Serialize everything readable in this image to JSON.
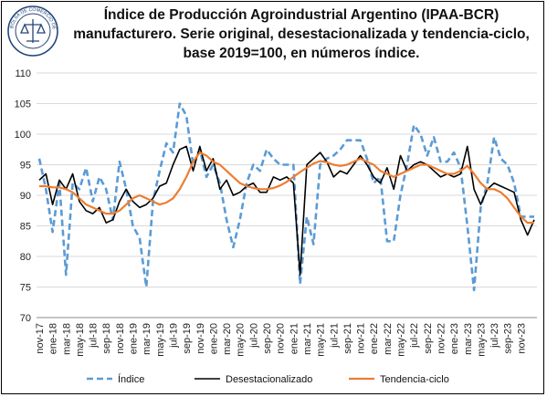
{
  "title_lines": [
    "Índice de Producción Agroindustrial Argentino (IPAA-BCR)",
    "manufacturero. Serie original, desestacionalizada y tendencia-ciclo,",
    "base 2019=100, en números índice."
  ],
  "logo_text": "BOLSA DE COMERCIO DE ROSARIO",
  "colors": {
    "indice": "#5b9bd5",
    "desest": "#000000",
    "tendencia": "#ed7d31",
    "grid": "#d9d9d9"
  },
  "chart_data": {
    "type": "line",
    "title": "Índice de Producción Agroindustrial Argentino (IPAA-BCR) manufacturero. Serie original, desestacionalizada y tendencia-ciclo, base 2019=100, en números índice.",
    "ylim": [
      70,
      110
    ],
    "yticks": [
      70,
      75,
      80,
      85,
      90,
      95,
      100,
      105,
      110
    ],
    "x_tick_labels": [
      "nov-17",
      "ene-18",
      "mar-18",
      "may-18",
      "jul-18",
      "sep-18",
      "nov-18",
      "ene-19",
      "mar-19",
      "may-19",
      "jul-19",
      "sep-19",
      "nov-19",
      "ene-20",
      "mar-20",
      "may-20",
      "jul-20",
      "sep-20",
      "nov-20",
      "ene-21",
      "mar-21",
      "may-21",
      "jul-21",
      "sep-21",
      "nov-21",
      "ene-22",
      "mar-22",
      "may-22",
      "jul-22",
      "sep-22",
      "nov-22",
      "ene-23",
      "mar-23",
      "may-23",
      "jul-23",
      "sep-23",
      "nov-23"
    ],
    "legend_position": "bottom",
    "grid": true,
    "series": [
      {
        "name": "Índice",
        "style": "dashed",
        "values": [
          96,
          91,
          84,
          92,
          77,
          92,
          91,
          94.5,
          89,
          93,
          91,
          86,
          95.5,
          91,
          85,
          83,
          75,
          89,
          94,
          98.5,
          97,
          105,
          103,
          95,
          97.5,
          93,
          95,
          92,
          86,
          81.5,
          86,
          92,
          95,
          94,
          97.5,
          96,
          95,
          95,
          95,
          75.5,
          86.5,
          82,
          95,
          96,
          96.5,
          97.5,
          99,
          99,
          99,
          96,
          92,
          93,
          82.5,
          82.5,
          90,
          95,
          101.5,
          100,
          96.5,
          99.5,
          95.5,
          95.5,
          97,
          94.5,
          85,
          74.5,
          88,
          92,
          99.5,
          96,
          95,
          92,
          86.5,
          86.5,
          86.5
        ]
      },
      {
        "name": "Desestacionalizado",
        "style": "solid",
        "values": [
          92.5,
          93.5,
          88.5,
          92.5,
          91,
          93.5,
          89,
          87.5,
          87,
          88,
          85.5,
          86,
          89,
          91,
          89,
          88,
          88.5,
          89.5,
          91.5,
          92,
          95,
          97.5,
          98,
          94,
          98,
          94,
          96,
          91,
          92.5,
          90,
          90.5,
          91.5,
          92,
          90.5,
          90.5,
          93,
          92.5,
          93,
          92,
          77,
          95,
          96,
          97,
          95.5,
          93,
          94,
          93.5,
          95,
          96.5,
          95,
          93,
          92,
          94.5,
          91,
          96.5,
          94,
          95,
          95.5,
          95,
          94,
          93,
          93.5,
          93,
          93.5,
          98,
          91,
          88.5,
          91,
          92,
          91.5,
          91,
          90.5,
          86,
          83.5,
          86
        ]
      },
      {
        "name": "Tendencia-ciclo",
        "style": "solid",
        "values": [
          91.5,
          91.5,
          91.3,
          91.3,
          91,
          90.5,
          89.5,
          88.5,
          88,
          87.5,
          87,
          87,
          87.5,
          88.5,
          89.5,
          90,
          89.5,
          89,
          88.5,
          88.8,
          89.5,
          91,
          93,
          95.5,
          97,
          96.5,
          95.5,
          95,
          94,
          93,
          92,
          91.5,
          91.2,
          91,
          91,
          91.2,
          91.6,
          92.2,
          93,
          93.8,
          94.5,
          95.2,
          95.6,
          95.4,
          95,
          94.8,
          95,
          95.5,
          96,
          95.5,
          95,
          94,
          93.5,
          93,
          93.5,
          94,
          94.5,
          95,
          95,
          94.5,
          94,
          93.5,
          93.5,
          94,
          94.8,
          93.5,
          92,
          91,
          91,
          90.5,
          89.5,
          88,
          86.5,
          85.5,
          85.5
        ]
      }
    ]
  }
}
